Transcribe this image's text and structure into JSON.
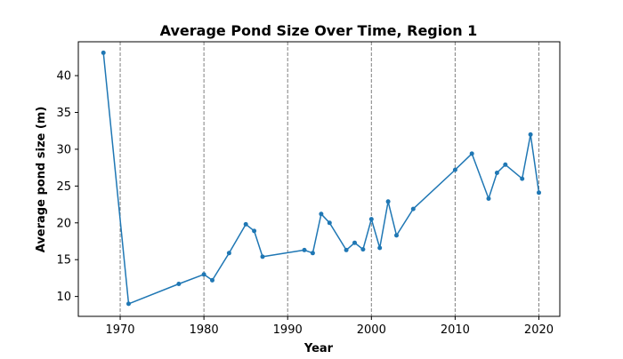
{
  "chart_data": {
    "type": "line",
    "title": "Average Pond Size Over Time, Region 1",
    "xlabel": "Year",
    "ylabel": "Average pond size (m)",
    "xlim": [
      1965,
      2022.5
    ],
    "ylim": [
      7.3,
      44.6
    ],
    "xticks": [
      1970,
      1980,
      1990,
      2000,
      2010,
      2020
    ],
    "yticks": [
      10,
      15,
      20,
      25,
      30,
      35,
      40
    ],
    "vertical_reference_lines": [
      1970,
      1980,
      1990,
      2000,
      2010,
      2020
    ],
    "grid": false,
    "legend": "none",
    "series": [
      {
        "color": "#1f77b4",
        "marker": "circle",
        "x": [
          1968,
          1971,
          1977,
          1980,
          1981,
          1983,
          1985,
          1986,
          1987,
          1992,
          1993,
          1994,
          1995,
          1997,
          1998,
          1999,
          2000,
          2001,
          2002,
          2003,
          2005,
          2010,
          2012,
          2014,
          2015,
          2016,
          2018,
          2019,
          2020
        ],
        "y": [
          43.1,
          9.0,
          11.7,
          13.0,
          12.2,
          15.9,
          19.8,
          18.9,
          15.4,
          16.3,
          15.9,
          21.2,
          20.0,
          16.3,
          17.3,
          16.4,
          20.5,
          16.6,
          22.9,
          18.3,
          21.9,
          27.2,
          29.4,
          23.3,
          26.8,
          27.9,
          26.0,
          32.0,
          24.1
        ]
      }
    ]
  }
}
